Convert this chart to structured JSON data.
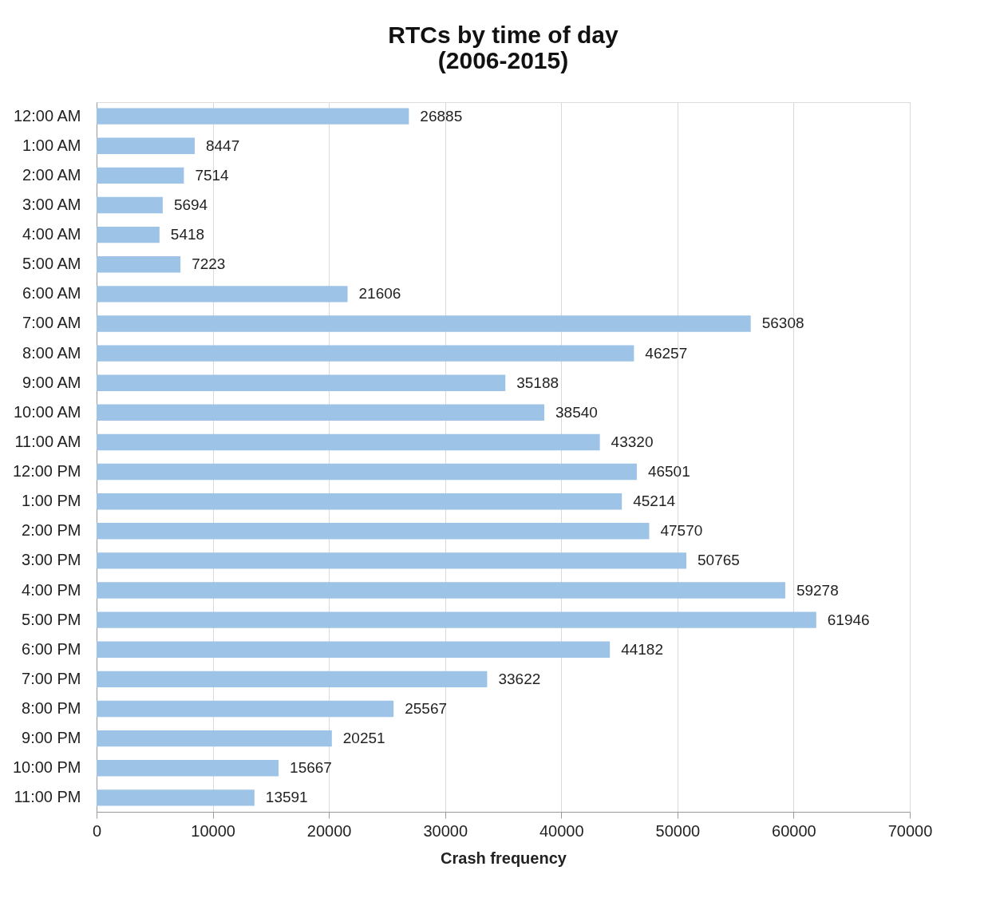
{
  "chart_data": {
    "type": "bar",
    "orientation": "horizontal",
    "title": "RTCs by time of day\n(2006-2015)",
    "xlabel": "Crash frequency",
    "categories": [
      "12:00 AM",
      "1:00 AM",
      "2:00 AM",
      "3:00 AM",
      "4:00 AM",
      "5:00 AM",
      "6:00 AM",
      "7:00 AM",
      "8:00 AM",
      "9:00 AM",
      "10:00 AM",
      "11:00 AM",
      "12:00 PM",
      "1:00 PM",
      "2:00 PM",
      "3:00 PM",
      "4:00 PM",
      "5:00 PM",
      "6:00 PM",
      "7:00 PM",
      "8:00 PM",
      "9:00 PM",
      "10:00 PM",
      "11:00 PM"
    ],
    "values": [
      26885,
      8447,
      7514,
      5694,
      5418,
      7223,
      21606,
      56308,
      46257,
      35188,
      38540,
      43320,
      46501,
      45214,
      47570,
      50765,
      59278,
      61946,
      44182,
      33622,
      25567,
      20251,
      15667,
      13591
    ],
    "color": "#9dc3e6",
    "data_labels": true,
    "grid": "x",
    "xlim": [
      0,
      70000
    ],
    "xticks": [
      0,
      10000,
      20000,
      30000,
      40000,
      50000,
      60000,
      70000
    ]
  }
}
